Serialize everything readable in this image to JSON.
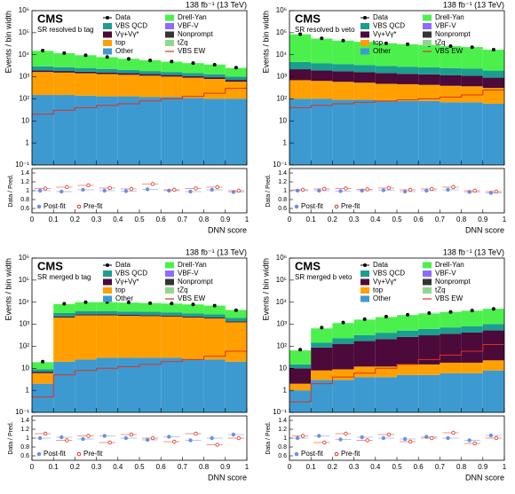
{
  "chart_data": [
    {
      "type": "stacked-histogram",
      "experiment": "CMS",
      "lumi": "138 fb⁻¹ (13 TeV)",
      "region": "SR resolved b tag",
      "ylabel": "Events / bin width",
      "xlabel": "DNN score",
      "bins": [
        0,
        0.1,
        0.2,
        0.3,
        0.4,
        0.5,
        0.6,
        0.7,
        0.8,
        0.9,
        1
      ],
      "xlim": [
        0,
        1
      ],
      "xticks": [
        0,
        0.1,
        0.2,
        0.3,
        0.4,
        0.5,
        0.6,
        0.7,
        0.8,
        0.9,
        1
      ],
      "ylim": [
        0.1,
        1000000
      ],
      "log": true,
      "yticks": [
        {
          "value": 0.1,
          "label": "10⁻¹"
        },
        1,
        10,
        {
          "value": 100,
          "label": "10²"
        },
        {
          "value": 1000,
          "label": "10³"
        },
        {
          "value": 10000,
          "label": "10⁴"
        },
        {
          "value": 100000,
          "label": "10⁵"
        },
        {
          "value": 1000000,
          "label": "10⁶"
        }
      ],
      "series": [
        {
          "name": "Other",
          "color": "#3d9ad1",
          "values": [
            150,
            150,
            140,
            130,
            130,
            120,
            120,
            110,
            100,
            100
          ]
        },
        {
          "name": "top",
          "color": "#ffa000",
          "values": [
            1500,
            1400,
            1300,
            1200,
            1100,
            1000,
            900,
            800,
            700,
            500
          ]
        },
        {
          "name": "Vγ+Vγ*",
          "color": "#4b0a3a",
          "values": [
            300,
            280,
            260,
            240,
            220,
            200,
            180,
            160,
            150,
            120
          ]
        },
        {
          "name": "VBS QCD",
          "color": "#1a9e8f",
          "values": [
            1000,
            900,
            800,
            700,
            600,
            500,
            450,
            400,
            350,
            300
          ]
        },
        {
          "name": "Drell-Yan",
          "color": "#4cf04c",
          "values": [
            12000,
            9000,
            7000,
            5500,
            4500,
            3800,
            3200,
            2700,
            2300,
            1500
          ]
        }
      ],
      "extra_legend": [
        {
          "name": "VBF-V",
          "color": "#8a6cff"
        },
        {
          "name": "Nonprompt",
          "color": "#333333"
        },
        {
          "name": "tZq",
          "color": "#8ed88e"
        }
      ],
      "data": {
        "name": "Data",
        "values": [
          15500,
          11800,
          9400,
          7900,
          6500,
          5500,
          4900,
          4200,
          3500,
          2600
        ]
      },
      "signal": {
        "name": "VBS EW",
        "color": "#e0301e",
        "values": [
          20,
          30,
          40,
          50,
          60,
          80,
          100,
          130,
          180,
          300
        ]
      },
      "ratio": {
        "ylabel": "Data / Pred.",
        "ylim": [
          0.5,
          1.5
        ],
        "yticks": [
          0.6,
          0.8,
          1,
          1.2,
          1.4
        ],
        "series": [
          {
            "name": "Post-fit",
            "color": "#6f8fe8",
            "values": [
              1.0,
              0.98,
              1.02,
              1.0,
              0.99,
              1.03,
              1.0,
              0.98,
              1.02,
              0.97
            ]
          },
          {
            "name": "Pre-fit",
            "color": "#e0301e",
            "values": [
              1.05,
              1.08,
              1.12,
              1.06,
              1.04,
              1.15,
              1.02,
              1.05,
              1.08,
              1.0
            ]
          }
        ]
      }
    },
    {
      "type": "stacked-histogram",
      "experiment": "CMS",
      "lumi": "138 fb⁻¹ (13 TeV)",
      "region": "SR resolved b veto",
      "ylabel": "Events / bin width",
      "xlabel": "DNN score",
      "bins": [
        0,
        0.1,
        0.2,
        0.3,
        0.4,
        0.5,
        0.6,
        0.7,
        0.8,
        0.9,
        1
      ],
      "xlim": [
        0,
        1
      ],
      "xticks": [
        0,
        0.1,
        0.2,
        0.3,
        0.4,
        0.5,
        0.6,
        0.7,
        0.8,
        0.9,
        1
      ],
      "ylim": [
        0.1,
        1000000
      ],
      "log": true,
      "yticks": [
        {
          "value": 0.1,
          "label": "10⁻¹"
        },
        1,
        10,
        {
          "value": 100,
          "label": "10²"
        },
        {
          "value": 1000,
          "label": "10³"
        },
        {
          "value": 10000,
          "label": "10⁴"
        },
        {
          "value": 100000,
          "label": "10⁵"
        },
        {
          "value": 1000000,
          "label": "10⁶"
        }
      ],
      "series": [
        {
          "name": "Other",
          "color": "#3d9ad1",
          "values": [
            100,
            100,
            90,
            90,
            80,
            80,
            80,
            70,
            70,
            60
          ]
        },
        {
          "name": "top",
          "color": "#ffa000",
          "values": [
            600,
            550,
            500,
            450,
            400,
            380,
            350,
            320,
            300,
            250
          ]
        },
        {
          "name": "Vγ+Vγ*",
          "color": "#4b0a3a",
          "values": [
            1500,
            1300,
            1200,
            1100,
            1000,
            900,
            850,
            800,
            750,
            600
          ]
        },
        {
          "name": "VBS QCD",
          "color": "#1a9e8f",
          "values": [
            2500,
            2200,
            2000,
            1800,
            1600,
            1500,
            1400,
            1300,
            1200,
            1000
          ]
        },
        {
          "name": "Drell-Yan",
          "color": "#4cf04c",
          "values": [
            80000,
            50000,
            40000,
            35000,
            30000,
            27000,
            25000,
            22000,
            20000,
            15000
          ]
        }
      ],
      "extra_legend": [
        {
          "name": "VBF-V",
          "color": "#8a6cff"
        },
        {
          "name": "Nonprompt",
          "color": "#333333"
        },
        {
          "name": "tZq",
          "color": "#8ed88e"
        }
      ],
      "data": {
        "name": "Data",
        "values": [
          86000,
          55000,
          44000,
          38000,
          33000,
          30000,
          27500,
          24500,
          22000,
          17000
        ]
      },
      "signal": {
        "name": "VBS EW",
        "color": "#e0301e",
        "values": [
          40,
          50,
          60,
          70,
          80,
          90,
          100,
          120,
          150,
          250
        ]
      },
      "ratio": {
        "ylabel": "Data / Pred.",
        "ylim": [
          0.5,
          1.5
        ],
        "yticks": [
          0.6,
          0.8,
          1,
          1.2,
          1.4
        ],
        "series": [
          {
            "name": "Post-fit",
            "color": "#6f8fe8",
            "values": [
              1.0,
              1.0,
              0.99,
              1.0,
              1.01,
              0.98,
              1.0,
              1.02,
              0.97,
              0.95
            ]
          },
          {
            "name": "Pre-fit",
            "color": "#e0301e",
            "values": [
              1.02,
              1.04,
              1.05,
              1.03,
              1.06,
              1.02,
              1.04,
              1.08,
              1.0,
              0.98
            ]
          }
        ]
      }
    },
    {
      "type": "stacked-histogram",
      "experiment": "CMS",
      "lumi": "138 fb⁻¹ (13 TeV)",
      "region": "SR merged b tag",
      "ylabel": "Events / bin width",
      "xlabel": "DNN score",
      "bins": [
        0,
        0.1,
        0.2,
        0.3,
        0.4,
        0.5,
        0.6,
        0.7,
        0.8,
        0.9,
        1
      ],
      "xlim": [
        0,
        1
      ],
      "xticks": [
        0,
        0.1,
        0.2,
        0.3,
        0.4,
        0.5,
        0.6,
        0.7,
        0.8,
        0.9,
        1
      ],
      "ylim": [
        0.1,
        1000000
      ],
      "log": true,
      "yticks": [
        {
          "value": 0.1,
          "label": "10⁻¹"
        },
        1,
        10,
        {
          "value": 100,
          "label": "10²"
        },
        {
          "value": 1000,
          "label": "10³"
        },
        {
          "value": 10000,
          "label": "10⁴"
        },
        {
          "value": 100000,
          "label": "10⁵"
        },
        {
          "value": 1000000,
          "label": "10⁶"
        }
      ],
      "series": [
        {
          "name": "Other",
          "color": "#3d9ad1",
          "values": [
            2,
            20,
            25,
            30,
            30,
            30,
            30,
            25,
            25,
            20
          ]
        },
        {
          "name": "top",
          "color": "#ffa000",
          "values": [
            4,
            2000,
            2500,
            2500,
            2400,
            2300,
            2200,
            2000,
            1800,
            1200
          ]
        },
        {
          "name": "Vγ+Vγ*",
          "color": "#4b0a3a",
          "values": [
            1,
            200,
            250,
            250,
            240,
            230,
            220,
            200,
            180,
            120
          ]
        },
        {
          "name": "VBS QCD",
          "color": "#1a9e8f",
          "values": [
            2,
            1000,
            1200,
            1200,
            1100,
            1100,
            1000,
            900,
            800,
            600
          ]
        },
        {
          "name": "Drell-Yan",
          "color": "#4cf04c",
          "values": [
            10,
            5000,
            6000,
            6000,
            5800,
            5500,
            5200,
            4800,
            4200,
            2500
          ]
        }
      ],
      "extra_legend": [
        {
          "name": "VBF-V",
          "color": "#8a6cff"
        },
        {
          "name": "Nonprompt",
          "color": "#333333"
        },
        {
          "name": "tZq",
          "color": "#8ed88e"
        }
      ],
      "data": {
        "name": "Data",
        "values": [
          20,
          8500,
          10000,
          10200,
          9700,
          9000,
          8700,
          7900,
          7000,
          4300
        ]
      },
      "signal": {
        "name": "VBS EW",
        "color": "#e0301e",
        "values": [
          0.5,
          5,
          8,
          10,
          12,
          15,
          20,
          25,
          35,
          60
        ]
      },
      "ratio": {
        "ylabel": "Data / Pred.",
        "ylim": [
          0.5,
          1.5
        ],
        "yticks": [
          0.6,
          0.8,
          1,
          1.2,
          1.4
        ],
        "series": [
          {
            "name": "Post-fit",
            "color": "#6f8fe8",
            "values": [
              1.0,
              1.02,
              0.98,
              1.05,
              1.0,
              0.96,
              1.03,
              0.95,
              1.0,
              1.08
            ]
          },
          {
            "name": "Pre-fit",
            "color": "#e0301e",
            "values": [
              1.1,
              0.95,
              1.05,
              0.9,
              1.08,
              1.0,
              0.92,
              1.1,
              0.85,
              1.0
            ]
          }
        ]
      }
    },
    {
      "type": "stacked-histogram",
      "experiment": "CMS",
      "lumi": "138 fb⁻¹ (13 TeV)",
      "region": "SR merged b veto",
      "ylabel": "Events / bin width",
      "xlabel": "DNN score",
      "bins": [
        0,
        0.1,
        0.2,
        0.3,
        0.4,
        0.5,
        0.6,
        0.7,
        0.8,
        0.9,
        1
      ],
      "xlim": [
        0,
        1
      ],
      "xticks": [
        0,
        0.1,
        0.2,
        0.3,
        0.4,
        0.5,
        0.6,
        0.7,
        0.8,
        0.9,
        1
      ],
      "ylim": [
        0.1,
        1000000
      ],
      "log": true,
      "yticks": [
        {
          "value": 0.1,
          "label": "10⁻¹"
        },
        1,
        10,
        {
          "value": 100,
          "label": "10²"
        },
        {
          "value": 1000,
          "label": "10³"
        },
        {
          "value": 10000,
          "label": "10⁴"
        },
        {
          "value": 100000,
          "label": "10⁵"
        },
        {
          "value": 1000000,
          "label": "10⁶"
        }
      ],
      "series": [
        {
          "name": "Other",
          "color": "#3d9ad1",
          "values": [
            1,
            3,
            3,
            4,
            4,
            5,
            5,
            6,
            6,
            8
          ]
        },
        {
          "name": "top",
          "color": "#ffa000",
          "values": [
            1,
            5,
            6,
            8,
            8,
            10,
            10,
            12,
            12,
            15
          ]
        },
        {
          "name": "Vγ+Vγ*",
          "color": "#4b0a3a",
          "values": [
            8,
            80,
            120,
            160,
            200,
            250,
            300,
            350,
            400,
            500
          ]
        },
        {
          "name": "VBS QCD",
          "color": "#1a9e8f",
          "values": [
            5,
            60,
            100,
            150,
            200,
            250,
            300,
            350,
            400,
            500
          ]
        },
        {
          "name": "Drell-Yan",
          "color": "#4cf04c",
          "values": [
            50,
            500,
            900,
            1300,
            1700,
            2100,
            2500,
            2900,
            3300,
            4000
          ]
        }
      ],
      "extra_legend": [
        {
          "name": "VBF-V",
          "color": "#8a6cff"
        },
        {
          "name": "Nonprompt",
          "color": "#333333"
        },
        {
          "name": "tZq",
          "color": "#8ed88e"
        }
      ],
      "data": {
        "name": "Data",
        "values": [
          70,
          700,
          1200,
          1700,
          2200,
          2700,
          3200,
          3600,
          4200,
          5000
        ]
      },
      "signal": {
        "name": "VBS EW",
        "color": "#e0301e",
        "values": [
          0.3,
          2,
          4,
          6,
          10,
          15,
          25,
          40,
          60,
          120
        ]
      },
      "ratio": {
        "ylabel": "Data / Pred.",
        "ylim": [
          0.5,
          1.5
        ],
        "yticks": [
          0.6,
          0.8,
          1,
          1.2,
          1.4
        ],
        "series": [
          {
            "name": "Post-fit",
            "color": "#6f8fe8",
            "values": [
              1.0,
              1.05,
              0.97,
              1.02,
              1.0,
              0.98,
              1.03,
              1.0,
              0.95,
              1.06
            ]
          },
          {
            "name": "Pre-fit",
            "color": "#e0301e",
            "values": [
              1.05,
              0.9,
              1.1,
              0.95,
              1.08,
              0.92,
              1.0,
              1.12,
              0.88,
              1.0
            ]
          }
        ]
      }
    }
  ]
}
